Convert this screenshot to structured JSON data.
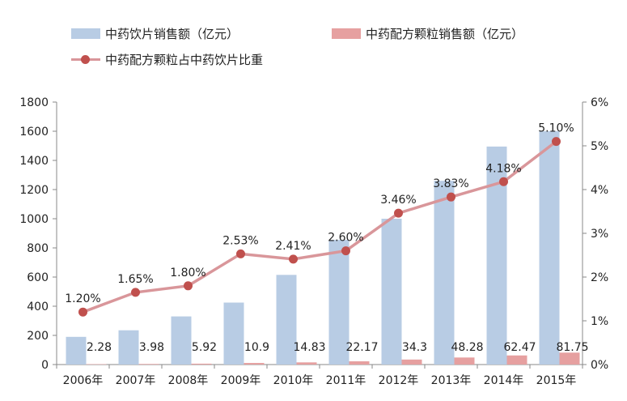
{
  "legend": {
    "pieces": "中药饮片销售额（亿元）",
    "granules": "中药配方颗粒销售额（亿元）",
    "share": "中药配方颗粒占中药饮片比重"
  },
  "colors": {
    "pieces_bar": "#b8cce4",
    "granules_bar": "#e6a0a0",
    "share_line": "#d9969a",
    "share_marker": "#c0504d"
  },
  "chart_data": {
    "type": "bar",
    "categories": [
      "2006年",
      "2007年",
      "2008年",
      "2009年",
      "2010年",
      "2011年",
      "2012年",
      "2013年",
      "2014年",
      "2015年"
    ],
    "series": [
      {
        "name": "中药饮片销售额（亿元）",
        "type": "bar",
        "axis": "left",
        "values": [
          190,
          235,
          330,
          425,
          615,
          855,
          1000,
          1260,
          1495,
          1600
        ]
      },
      {
        "name": "中药配方颗粒销售额（亿元）",
        "type": "bar",
        "axis": "left",
        "values": [
          2.28,
          3.98,
          5.92,
          10.9,
          14.83,
          22.17,
          34.3,
          48.28,
          62.47,
          81.75
        ],
        "labels": [
          "2.28",
          "3.98",
          "5.92",
          "10.9",
          "14.83",
          "22.17",
          "34.3",
          "48.28",
          "62.47",
          "81.75"
        ]
      },
      {
        "name": "中药配方颗粒占中药饮片比重",
        "type": "line",
        "axis": "right",
        "values": [
          1.2,
          1.65,
          1.8,
          2.53,
          2.41,
          2.6,
          3.46,
          3.83,
          4.18,
          5.1
        ],
        "labels": [
          "1.20%",
          "1.65%",
          "1.80%",
          "2.53%",
          "2.41%",
          "2.60%",
          "3.46%",
          "3.83%",
          "4.18%",
          "5.10%"
        ]
      }
    ],
    "y_left": {
      "ylim": [
        0,
        1800
      ],
      "ticks": [
        "0",
        "200",
        "400",
        "600",
        "800",
        "1000",
        "1200",
        "1400",
        "1600",
        "1800"
      ]
    },
    "y_right": {
      "ylim": [
        0,
        6
      ],
      "ticks": [
        "0%",
        "1%",
        "2%",
        "3%",
        "4%",
        "5%",
        "6%"
      ]
    },
    "grid": false,
    "legend_position": "top-left"
  }
}
